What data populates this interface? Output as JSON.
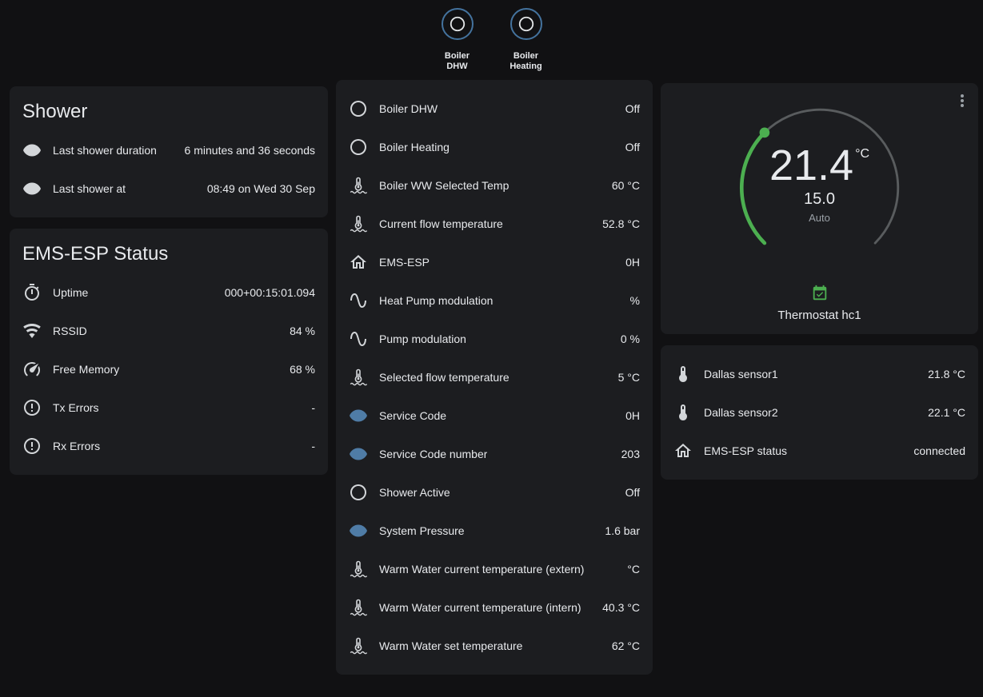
{
  "colors": {
    "background": "#111113",
    "card": "#1c1d20",
    "text_primary": "#e8eaed",
    "text_secondary": "#9aa0a6",
    "icon_default": "#d3d6d9",
    "icon_blue": "#4f7ca6",
    "accent_green": "#4caf50",
    "arc_track": "#595c5e",
    "button_ring": "#44739e"
  },
  "header_buttons": [
    {
      "icon": "circle-outline",
      "label": "Boiler DHW"
    },
    {
      "icon": "circle-outline",
      "label": "Boiler Heating"
    }
  ],
  "shower_card": {
    "title": "Shower",
    "rows": [
      {
        "icon": "eye",
        "label": "Last shower duration",
        "value": "6 minutes and 36 seconds"
      },
      {
        "icon": "eye",
        "label": "Last shower at",
        "value": "08:49 on Wed 30 Sep"
      }
    ]
  },
  "status_card": {
    "title": "EMS-ESP Status",
    "rows": [
      {
        "icon": "timer",
        "label": "Uptime",
        "value": "000+00:15:01.094"
      },
      {
        "icon": "wifi",
        "label": "RSSID",
        "value": "84 %"
      },
      {
        "icon": "gauge",
        "label": "Free Memory",
        "value": "68 %"
      },
      {
        "icon": "alert-circle",
        "label": "Tx Errors",
        "value": "-"
      },
      {
        "icon": "alert-circle",
        "label": "Rx Errors",
        "value": "-"
      }
    ]
  },
  "boiler_card": {
    "rows": [
      {
        "icon": "circle-outline",
        "label": "Boiler DHW",
        "value": "Off"
      },
      {
        "icon": "circle-outline",
        "label": "Boiler Heating",
        "value": "Off"
      },
      {
        "icon": "water-thermometer",
        "label": "Boiler WW Selected Temp",
        "value": "60 °C"
      },
      {
        "icon": "water-thermometer",
        "label": "Current flow temperature",
        "value": "52.8 °C"
      },
      {
        "icon": "home",
        "label": "EMS-ESP",
        "value": "0H"
      },
      {
        "icon": "sine-wave",
        "label": "Heat Pump modulation",
        "value": "%"
      },
      {
        "icon": "sine-wave",
        "label": "Pump modulation",
        "value": "0 %"
      },
      {
        "icon": "water-thermometer",
        "label": "Selected flow temperature",
        "value": "5 °C"
      },
      {
        "icon": "eye",
        "label": "Service Code",
        "value": "0H",
        "icon_color": "#4f7ca6"
      },
      {
        "icon": "eye",
        "label": "Service Code number",
        "value": "203",
        "icon_color": "#4f7ca6"
      },
      {
        "icon": "circle-outline",
        "label": "Shower Active",
        "value": "Off"
      },
      {
        "icon": "eye",
        "label": "System Pressure",
        "value": "1.6 bar",
        "icon_color": "#4f7ca6"
      },
      {
        "icon": "water-thermometer",
        "label": "Warm Water current temperature (extern)",
        "value": "°C"
      },
      {
        "icon": "water-thermometer",
        "label": "Warm Water current temperature (intern)",
        "value": "40.3 °C"
      },
      {
        "icon": "water-thermometer",
        "label": "Warm Water set temperature",
        "value": "62 °C"
      }
    ]
  },
  "thermostat_card": {
    "current_temperature": "21.4",
    "unit": "°C",
    "target_temperature": "15.0",
    "mode": "Auto",
    "name": "Thermostat hc1"
  },
  "sensors_card": {
    "rows": [
      {
        "icon": "thermometer",
        "label": "Dallas sensor1",
        "value": "21.8 °C"
      },
      {
        "icon": "thermometer",
        "label": "Dallas sensor2",
        "value": "22.1 °C"
      },
      {
        "icon": "home",
        "label": "EMS-ESP status",
        "value": "connected"
      }
    ]
  }
}
